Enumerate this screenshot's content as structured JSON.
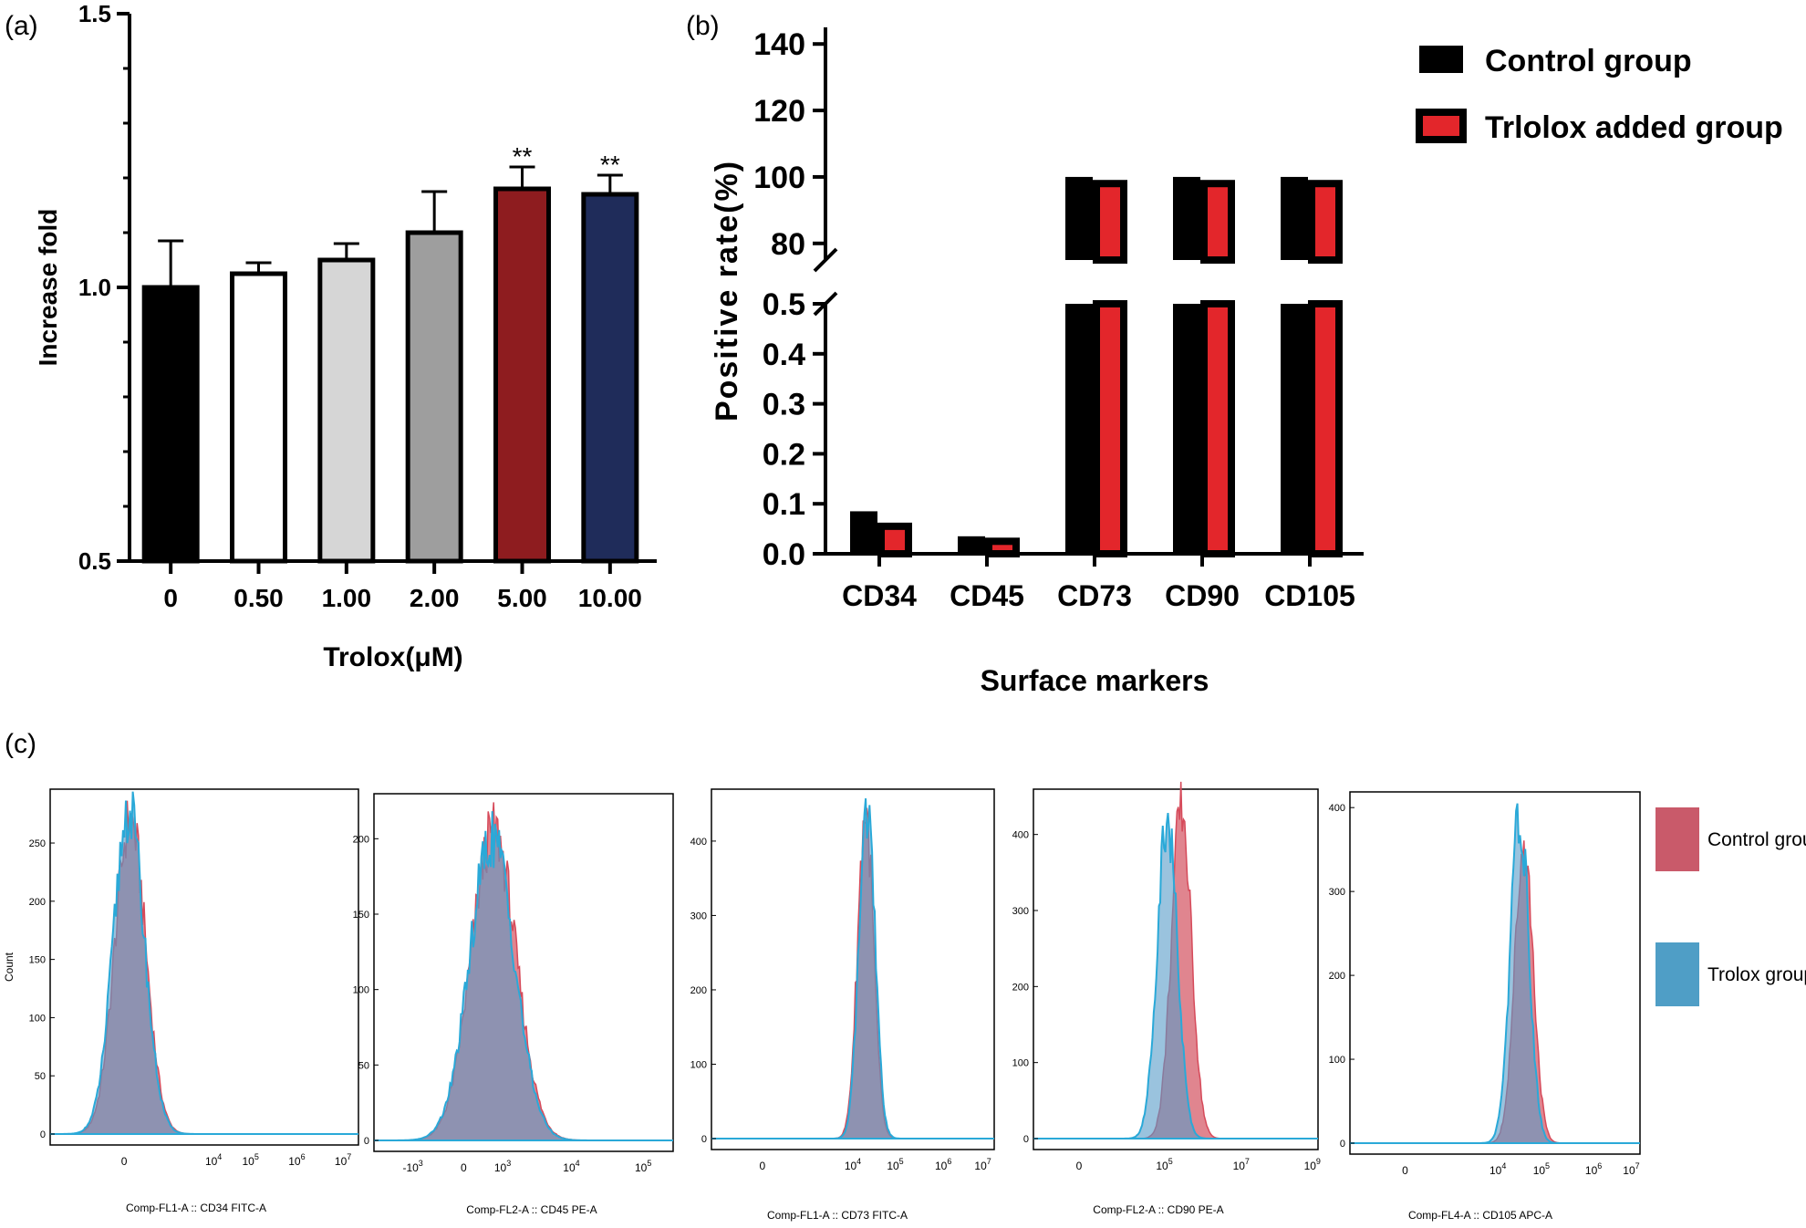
{
  "panel_labels": {
    "a": "(a)",
    "b": "(b)",
    "c": "(c)"
  },
  "chart_data": [
    {
      "id": "a",
      "type": "bar",
      "title": "",
      "xlabel": "Trolox(μM)",
      "ylabel": "Increase fold",
      "ylim": [
        0.5,
        1.5
      ],
      "yticks": [
        "0.5",
        "1.0",
        "1.5"
      ],
      "categories": [
        "0",
        "0.50",
        "1.00",
        "2.00",
        "5.00",
        "10.00"
      ],
      "values": [
        1.0,
        1.025,
        1.05,
        1.1,
        1.18,
        1.17
      ],
      "errors": [
        0.085,
        0.02,
        0.03,
        0.075,
        0.04,
        0.035
      ],
      "annotations": [
        "",
        "",
        "",
        "",
        "**",
        "**"
      ],
      "colors": [
        "#000000",
        "#ffffff",
        "#d6d6d6",
        "#9e9e9e",
        "#8e1c1f",
        "#1f2c5a"
      ]
    },
    {
      "id": "b",
      "type": "bar",
      "xlabel": "Surface markers",
      "ylabel": "Positive rate(%)",
      "broken_axis": true,
      "lower_ylim": [
        0,
        0.5
      ],
      "lower_yticks": [
        "0.0",
        "0.1",
        "0.2",
        "0.3",
        "0.4",
        "0.5"
      ],
      "upper_ylim": [
        75,
        145
      ],
      "upper_yticks": [
        "80",
        "100",
        "120",
        "140"
      ],
      "categories": [
        "CD34",
        "CD45",
        "CD73",
        "CD90",
        "CD105"
      ],
      "series": [
        {
          "name": "Control group",
          "color": "#000000",
          "values": [
            0.085,
            0.035,
            100,
            100,
            100
          ]
        },
        {
          "name": "Trlolox added group",
          "color": "#e3262b",
          "values": [
            0.055,
            0.025,
            98,
            98,
            98
          ]
        }
      ],
      "legend": [
        "Control group",
        "Trlolox added group"
      ]
    },
    {
      "id": "c",
      "type": "histogram",
      "ylabel": "Count",
      "legend": [
        {
          "name": "Control group",
          "color": "#c95a6a"
        },
        {
          "name": "Trolox group",
          "color": "#4f9ec6"
        }
      ],
      "panels": [
        {
          "xlabel": "Comp-FL1-A :: CD34 FITC-A",
          "ymax": 290,
          "yticks": [
            "0",
            "50",
            "100",
            "150",
            "200",
            "250"
          ],
          "xticks": [
            {
              "base": "0",
              "exp": ""
            },
            {
              "base": "10",
              "exp": "4"
            },
            {
              "base": "10",
              "exp": "5"
            },
            {
              "base": "10",
              "exp": "6"
            },
            {
              "base": "10",
              "exp": "7"
            }
          ],
          "xtick_pos": [
            0.24,
            0.53,
            0.65,
            0.8,
            0.95
          ],
          "control": {
            "center": 0.26,
            "width": 0.05,
            "peak": 270
          },
          "trolox": {
            "center": 0.255,
            "width": 0.05,
            "peak": 278
          }
        },
        {
          "xlabel": "Comp-FL2-A :: CD45 PE-A",
          "ymax": 225,
          "yticks": [
            "0",
            "50",
            "100",
            "150",
            "200"
          ],
          "xticks": [
            {
              "base": "-10",
              "exp": "3"
            },
            {
              "base": "0",
              "exp": ""
            },
            {
              "base": "10",
              "exp": "3"
            },
            {
              "base": "10",
              "exp": "4"
            },
            {
              "base": "10",
              "exp": "5"
            }
          ],
          "xtick_pos": [
            0.13,
            0.3,
            0.43,
            0.66,
            0.9
          ],
          "control": {
            "center": 0.4,
            "width": 0.075,
            "peak": 205
          },
          "trolox": {
            "center": 0.395,
            "width": 0.075,
            "peak": 200
          }
        },
        {
          "xlabel": "Comp-FL1-A :: CD73 FITC-A",
          "ymax": 460,
          "yticks": [
            "0",
            "100",
            "200",
            "300",
            "400"
          ],
          "xticks": [
            {
              "base": "0",
              "exp": ""
            },
            {
              "base": "10",
              "exp": "4"
            },
            {
              "base": "10",
              "exp": "5"
            },
            {
              "base": "10",
              "exp": "6"
            },
            {
              "base": "10",
              "exp": "7"
            }
          ],
          "xtick_pos": [
            0.18,
            0.5,
            0.65,
            0.82,
            0.96
          ],
          "control": {
            "center": 0.545,
            "width": 0.028,
            "peak": 440
          },
          "trolox": {
            "center": 0.55,
            "width": 0.028,
            "peak": 448
          }
        },
        {
          "xlabel": "Comp-FL2-A :: CD90 PE-A",
          "ymax": 450,
          "yticks": [
            "0",
            "100",
            "200",
            "300",
            "400"
          ],
          "xticks": [
            {
              "base": "0",
              "exp": ""
            },
            {
              "base": "10",
              "exp": "5"
            },
            {
              "base": "10",
              "exp": "7"
            },
            {
              "base": "10",
              "exp": "9"
            }
          ],
          "xtick_pos": [
            0.16,
            0.46,
            0.73,
            0.98
          ],
          "control": {
            "center": 0.52,
            "width": 0.035,
            "peak": 435
          },
          "trolox": {
            "center": 0.47,
            "width": 0.035,
            "peak": 425
          }
        },
        {
          "xlabel": "Comp-FL4-A :: CD105 APC-A",
          "ymax": 410,
          "yticks": [
            "0",
            "100",
            "200",
            "300",
            "400"
          ],
          "xticks": [
            {
              "base": "0",
              "exp": ""
            },
            {
              "base": "10",
              "exp": "4"
            },
            {
              "base": "10",
              "exp": "5"
            },
            {
              "base": "10",
              "exp": "6"
            },
            {
              "base": "10",
              "exp": "7"
            }
          ],
          "xtick_pos": [
            0.19,
            0.51,
            0.66,
            0.84,
            0.97
          ],
          "control": {
            "center": 0.6,
            "width": 0.032,
            "peak": 355
          },
          "trolox": {
            "center": 0.585,
            "width": 0.032,
            "peak": 390
          }
        }
      ]
    }
  ]
}
